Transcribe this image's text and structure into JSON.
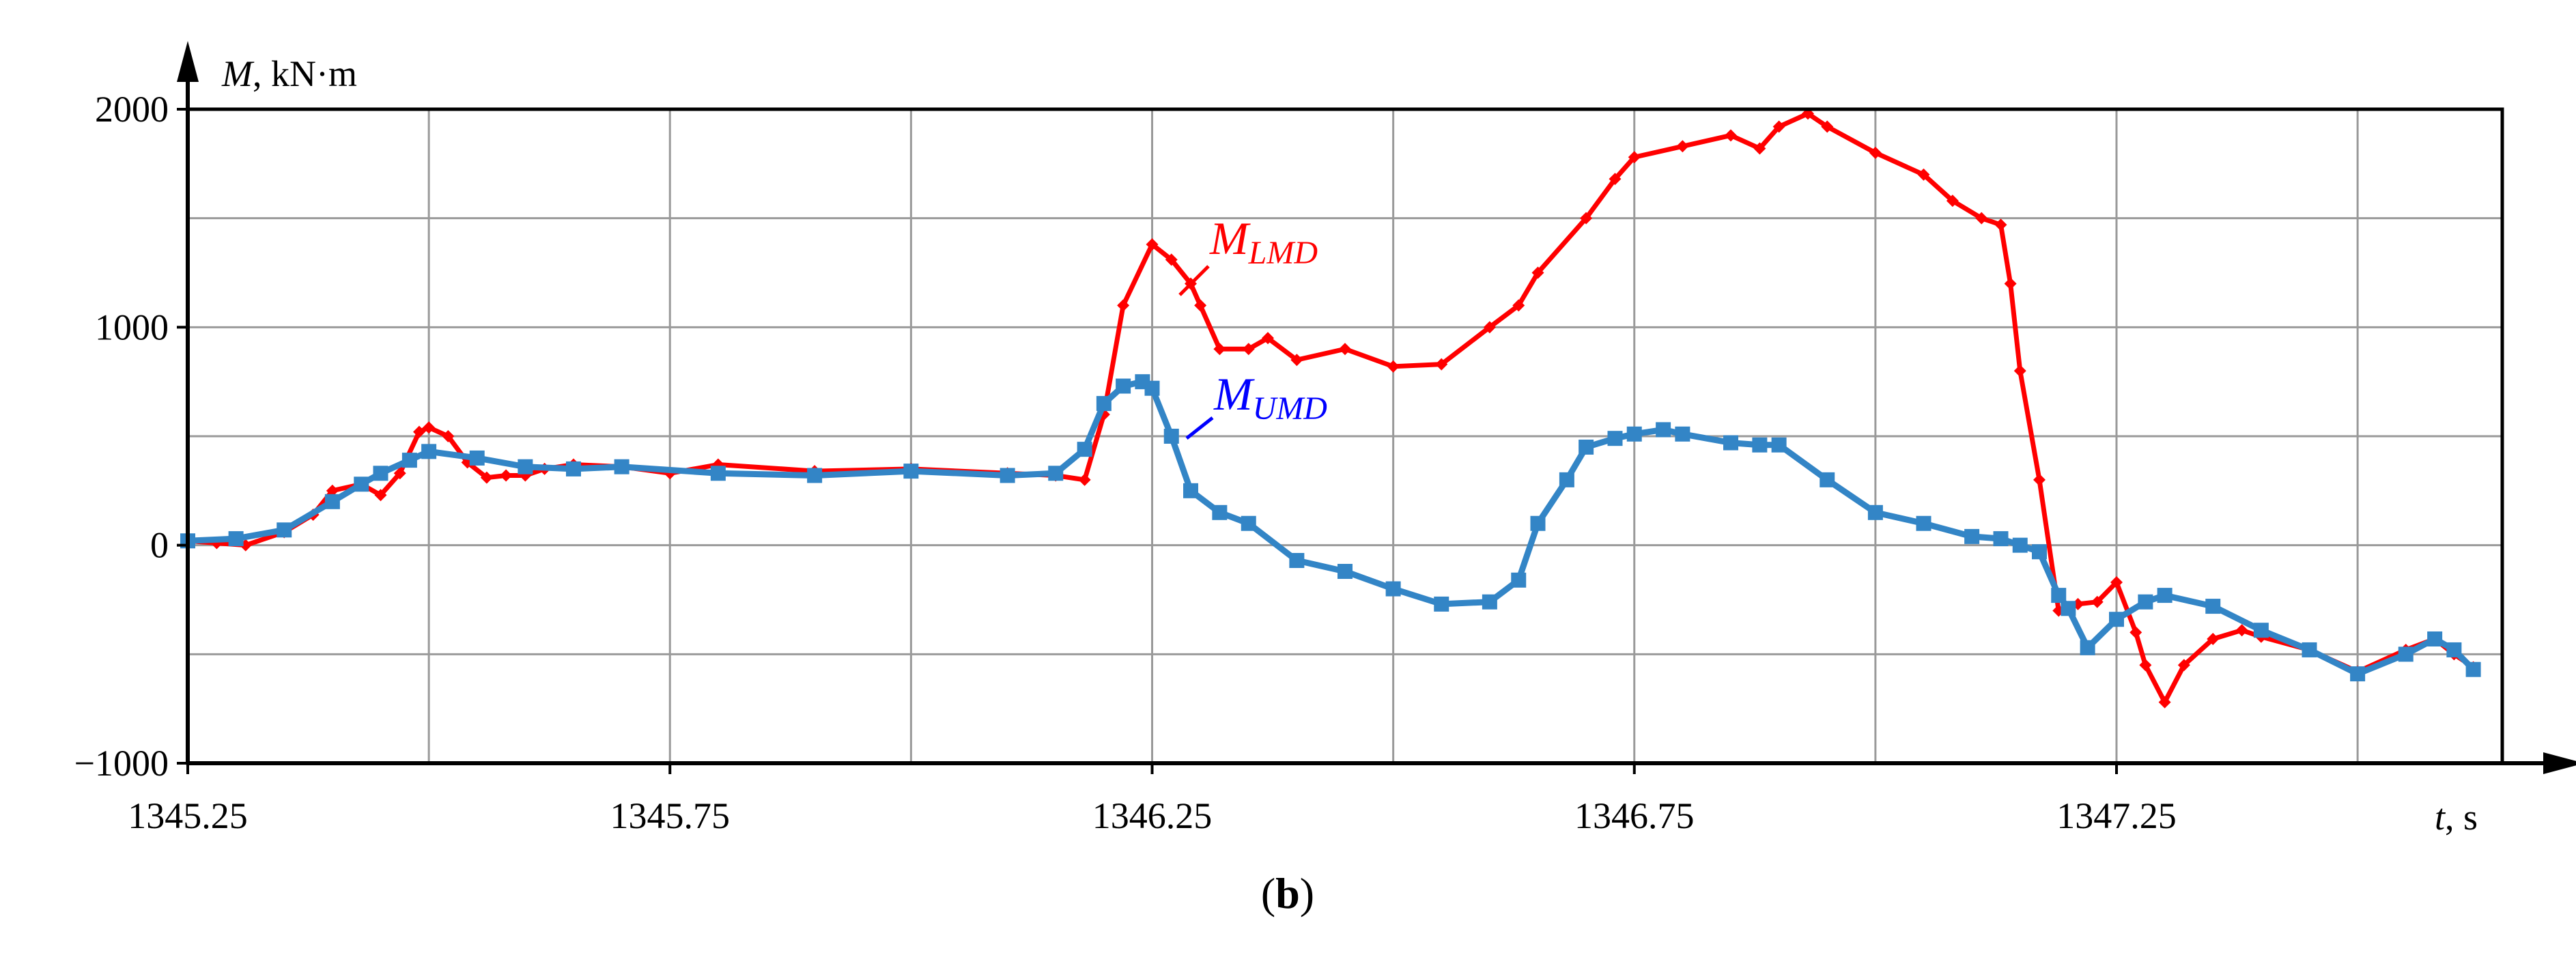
{
  "caption": {
    "open": "(",
    "letter": "b",
    "close": ")"
  },
  "chart_data": {
    "type": "line",
    "xlabel": {
      "var": "t",
      "unit": ", s"
    },
    "ylabel": {
      "var": "M",
      "unit": ", kN·m"
    },
    "xlim": [
      1345.25,
      1347.65
    ],
    "ylim": [
      -1000,
      2000
    ],
    "x_ticks": [
      1345.25,
      1345.75,
      1346.25,
      1346.75,
      1347.25
    ],
    "x_tick_labels": [
      "1345.25",
      "1345.75",
      "1346.25",
      "1346.75",
      "1347.25"
    ],
    "y_ticks": [
      -1000,
      0,
      1000,
      2000
    ],
    "y_tick_labels": [
      "−1000",
      "0",
      "1000",
      "2000"
    ],
    "grid": true,
    "series": [
      {
        "name": "M_LMD",
        "label_main": "M",
        "label_sub": "LMD",
        "color": "#ff0000",
        "marker": "diamond",
        "x": [
          1345.25,
          1345.28,
          1345.31,
          1345.35,
          1345.38,
          1345.4,
          1345.43,
          1345.45,
          1345.47,
          1345.49,
          1345.5,
          1345.52,
          1345.54,
          1345.56,
          1345.58,
          1345.6,
          1345.62,
          1345.65,
          1345.7,
          1345.75,
          1345.8,
          1345.9,
          1346.0,
          1346.1,
          1346.15,
          1346.18,
          1346.2,
          1346.22,
          1346.25,
          1346.27,
          1346.29,
          1346.3,
          1346.32,
          1346.35,
          1346.37,
          1346.4,
          1346.45,
          1346.5,
          1346.55,
          1346.6,
          1346.63,
          1346.65,
          1346.7,
          1346.73,
          1346.75,
          1346.8,
          1346.85,
          1346.88,
          1346.9,
          1346.93,
          1346.95,
          1347.0,
          1347.05,
          1347.08,
          1347.11,
          1347.13,
          1347.14,
          1347.15,
          1347.17,
          1347.19,
          1347.21,
          1347.23,
          1347.25,
          1347.27,
          1347.28,
          1347.3,
          1347.32,
          1347.35,
          1347.38,
          1347.4,
          1347.45,
          1347.5,
          1347.55,
          1347.58,
          1347.6,
          1347.62
        ],
        "y": [
          20,
          10,
          0,
          60,
          140,
          250,
          280,
          230,
          330,
          520,
          540,
          500,
          380,
          310,
          320,
          320,
          350,
          370,
          360,
          330,
          370,
          340,
          350,
          330,
          320,
          300,
          600,
          1100,
          1380,
          1310,
          1200,
          1100,
          900,
          900,
          950,
          850,
          900,
          820,
          830,
          1000,
          1100,
          1250,
          1500,
          1680,
          1780,
          1830,
          1880,
          1820,
          1920,
          1980,
          1920,
          1800,
          1700,
          1580,
          1500,
          1470,
          1200,
          800,
          300,
          -300,
          -270,
          -260,
          -170,
          -400,
          -550,
          -720,
          -550,
          -430,
          -390,
          -420,
          -480,
          -580,
          -480,
          -430,
          -500,
          -560
        ]
      },
      {
        "name": "M_UMD",
        "label_main": "M",
        "label_sub": "UMD",
        "color": "#3385c6",
        "marker": "square",
        "x": [
          1345.25,
          1345.3,
          1345.35,
          1345.4,
          1345.43,
          1345.45,
          1345.48,
          1345.5,
          1345.55,
          1345.6,
          1345.65,
          1345.7,
          1345.8,
          1345.9,
          1346.0,
          1346.1,
          1346.15,
          1346.18,
          1346.2,
          1346.22,
          1346.24,
          1346.25,
          1346.27,
          1346.29,
          1346.32,
          1346.35,
          1346.4,
          1346.45,
          1346.5,
          1346.55,
          1346.6,
          1346.63,
          1346.65,
          1346.68,
          1346.7,
          1346.73,
          1346.75,
          1346.78,
          1346.8,
          1346.85,
          1346.88,
          1346.9,
          1346.95,
          1347.0,
          1347.05,
          1347.1,
          1347.13,
          1347.15,
          1347.17,
          1347.19,
          1347.2,
          1347.22,
          1347.25,
          1347.28,
          1347.3,
          1347.35,
          1347.4,
          1347.45,
          1347.5,
          1347.55,
          1347.58,
          1347.6,
          1347.62
        ],
        "y": [
          20,
          30,
          70,
          200,
          280,
          330,
          390,
          430,
          400,
          360,
          350,
          360,
          330,
          320,
          340,
          320,
          330,
          440,
          650,
          730,
          750,
          720,
          500,
          250,
          150,
          100,
          -70,
          -120,
          -200,
          -270,
          -260,
          -160,
          100,
          300,
          450,
          490,
          510,
          530,
          510,
          470,
          460,
          460,
          300,
          150,
          100,
          40,
          30,
          0,
          -30,
          -230,
          -290,
          -470,
          -340,
          -260,
          -230,
          -280,
          -390,
          -480,
          -590,
          -500,
          -430,
          -480,
          -570
        ]
      }
    ]
  }
}
